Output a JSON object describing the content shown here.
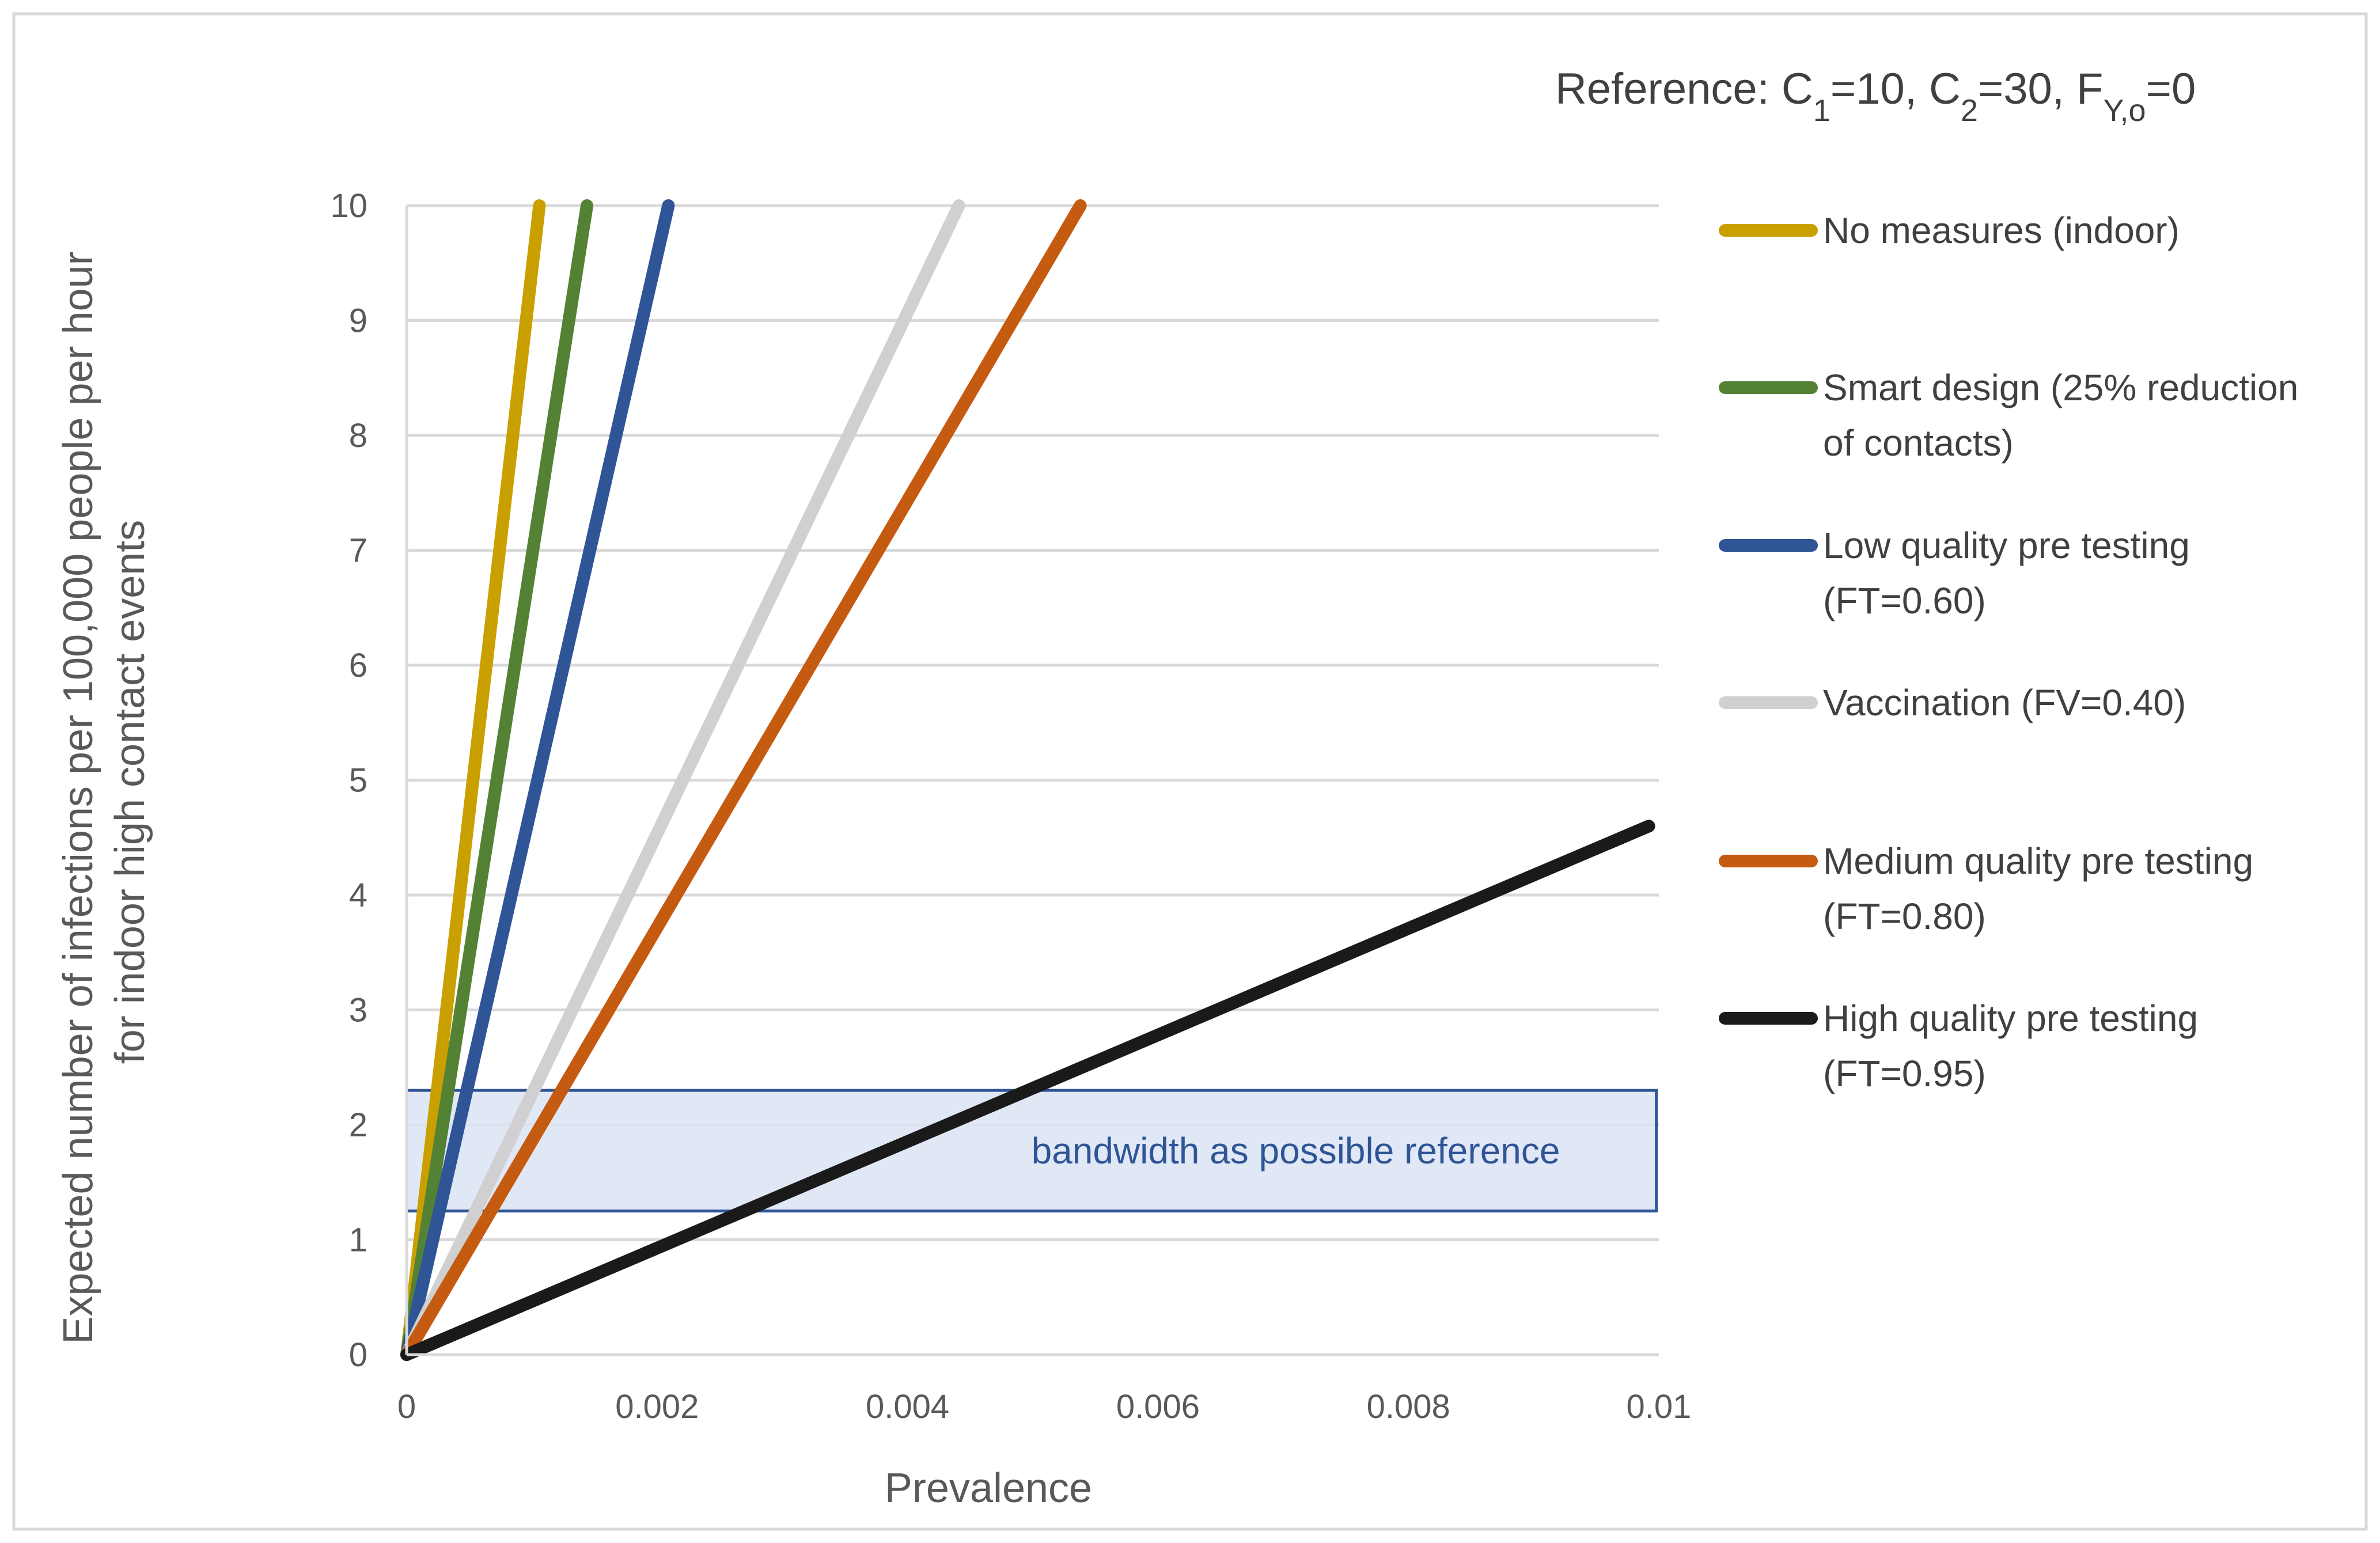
{
  "chart_data": {
    "type": "line",
    "title": "Reference: C1=10, C2=30, FY,o=0",
    "reference_parts": {
      "prefix": "Reference: C",
      "c1_sub": "1",
      "c1_val": "=10, C",
      "c2_sub": "2",
      "c2_val": "=30, F",
      "f_sub": "Y,o",
      "f_val": "=0"
    },
    "xlabel": "Prevalence",
    "ylabel_lines": [
      "Expected number of infections per 100,000 people per hour",
      "for indoor high contact events"
    ],
    "xlim": [
      0,
      0.01
    ],
    "ylim": [
      0,
      10
    ],
    "x_ticks": [
      0,
      0.002,
      0.004,
      0.006,
      0.008,
      0.01
    ],
    "x_tick_labels": [
      "0",
      "0.002",
      "0.004",
      "0.006",
      "0.008",
      "0.01"
    ],
    "y_ticks": [
      0,
      1,
      2,
      3,
      4,
      5,
      6,
      7,
      8,
      9,
      10
    ],
    "y_tick_labels": [
      "0",
      "1",
      "2",
      "3",
      "4",
      "5",
      "6",
      "7",
      "8",
      "9",
      "10"
    ],
    "grid": "horizontal",
    "series": [
      {
        "name": "No measures (indoor)",
        "legend_lines": [
          "No measures (indoor)"
        ],
        "color": "#C9A000",
        "x": [
          0,
          0.00106
        ],
        "y": [
          0,
          10
        ]
      },
      {
        "name": "Smart design (25% reduction of contacts)",
        "legend_lines": [
          "Smart design (25% reduction",
          "of contacts)"
        ],
        "color": "#548235",
        "x": [
          0,
          0.00144
        ],
        "y": [
          0,
          10
        ]
      },
      {
        "name": "Low quality pre testing (FT=0.60)",
        "legend_lines": [
          "Low quality pre testing",
          "(FT=0.60)"
        ],
        "color": "#2F5597",
        "x": [
          0,
          0.00209
        ],
        "y": [
          0,
          10
        ]
      },
      {
        "name": "Vaccination (FV=0.40)",
        "legend_lines": [
          "Vaccination  (FV=0.40)"
        ],
        "color": "#D0D0D0",
        "x": [
          0,
          0.00441
        ],
        "y": [
          0,
          10
        ]
      },
      {
        "name": "Medium quality pre testing (FT=0.80)",
        "legend_lines": [
          "Medium quality pre testing",
          "(FT=0.80)"
        ],
        "color": "#C55A11",
        "x": [
          0,
          0.00538
        ],
        "y": [
          0,
          10
        ]
      },
      {
        "name": "High quality pre testing (FT=0.95)",
        "legend_lines": [
          "High quality pre testing",
          "(FT=0.95)"
        ],
        "color": "#1A1A1A",
        "x": [
          0,
          0.00992
        ],
        "y": [
          0,
          4.6
        ]
      }
    ],
    "band": {
      "label": "bandwidth as possible reference",
      "y_range": [
        1.25,
        2.3
      ],
      "x_range": [
        0,
        0.00998
      ],
      "fill": "#DAE3F3",
      "stroke": "#2F5597"
    }
  }
}
